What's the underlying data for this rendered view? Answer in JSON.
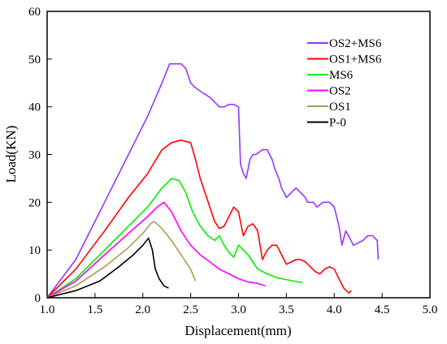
{
  "chart_data": {
    "type": "line",
    "title": "",
    "xlabel": "Displacement(mm)",
    "ylabel": "Load(KN)",
    "xlim": [
      1.0,
      5.0
    ],
    "ylim": [
      0,
      60
    ],
    "xticks": [
      "1.0",
      "1.5",
      "2.0",
      "2.5",
      "3.0",
      "3.5",
      "4.0",
      "4.5",
      "5.0"
    ],
    "yticks": [
      "0",
      "10",
      "20",
      "30",
      "40",
      "50",
      "60"
    ],
    "grid": false,
    "legend_position": "top-right",
    "series": [
      {
        "name": "OS2+MS6",
        "color": "#9933ff",
        "x": [
          1.0,
          1.3,
          1.6,
          1.85,
          2.05,
          2.2,
          2.28,
          2.4,
          2.45,
          2.5,
          2.55,
          2.62,
          2.7,
          2.75,
          2.8,
          2.85,
          2.9,
          2.95,
          3.0,
          3.02,
          3.05,
          3.08,
          3.12,
          3.15,
          3.18,
          3.25,
          3.3,
          3.35,
          3.38,
          3.42,
          3.45,
          3.5,
          3.55,
          3.6,
          3.65,
          3.7,
          3.72,
          3.78,
          3.82,
          3.88,
          3.95,
          4.0,
          4.05,
          4.08,
          4.12,
          4.15,
          4.2,
          4.3,
          4.35,
          4.4,
          4.45,
          4.46
        ],
        "y": [
          0,
          8,
          20,
          30,
          38,
          45,
          49,
          49,
          48,
          45,
          44,
          43,
          42,
          41,
          40,
          40,
          40.5,
          40.5,
          40,
          28,
          26,
          25,
          29,
          30,
          30,
          31,
          31,
          29,
          27,
          25,
          23,
          21,
          22,
          23,
          22,
          21,
          20,
          20,
          19,
          20,
          20,
          19,
          15,
          11,
          14,
          13,
          11,
          12,
          13,
          13,
          12,
          8
        ]
      },
      {
        "name": "OS1+MS6",
        "color": "#ff0000",
        "x": [
          1.0,
          1.3,
          1.6,
          1.85,
          2.05,
          2.2,
          2.3,
          2.4,
          2.5,
          2.55,
          2.6,
          2.65,
          2.7,
          2.75,
          2.8,
          2.85,
          2.9,
          2.95,
          3.0,
          3.05,
          3.1,
          3.15,
          3.2,
          3.25,
          3.3,
          3.35,
          3.4,
          3.45,
          3.5,
          3.55,
          3.6,
          3.65,
          3.7,
          3.75,
          3.8,
          3.85,
          3.9,
          3.95,
          4.0,
          4.05,
          4.1,
          4.15,
          4.18
        ],
        "y": [
          0,
          6,
          14,
          21,
          26,
          31,
          32.5,
          33,
          32.5,
          29,
          25,
          22,
          19,
          16,
          14.5,
          15,
          17,
          19,
          18,
          13,
          15,
          15.5,
          14,
          8,
          10,
          11,
          11,
          9,
          7,
          7.5,
          8,
          8,
          7.5,
          6.5,
          5.5,
          5,
          6,
          6.5,
          6,
          4,
          2,
          1,
          1.5
        ]
      },
      {
        "name": "MS6",
        "color": "#00ee00",
        "x": [
          1.0,
          1.3,
          1.6,
          1.85,
          2.05,
          2.2,
          2.3,
          2.38,
          2.45,
          2.52,
          2.6,
          2.68,
          2.75,
          2.8,
          2.85,
          2.9,
          2.95,
          3.0,
          3.05,
          3.1,
          3.15,
          3.2,
          3.3,
          3.4,
          3.5,
          3.6,
          3.67
        ],
        "y": [
          0,
          4,
          10,
          15,
          19,
          23,
          25,
          24.5,
          22,
          18,
          15,
          13,
          12,
          13,
          11,
          9.5,
          8.5,
          11,
          10,
          9,
          7.5,
          6,
          5,
          4.2,
          3.8,
          3.4,
          3.2
        ]
      },
      {
        "name": "OS2",
        "color": "#ff00ff",
        "x": [
          1.0,
          1.3,
          1.6,
          1.85,
          2.05,
          2.15,
          2.22,
          2.3,
          2.4,
          2.5,
          2.6,
          2.7,
          2.8,
          2.9,
          3.0,
          3.1,
          3.2,
          3.28
        ],
        "y": [
          0,
          3.5,
          9,
          13.5,
          17,
          19,
          20,
          18,
          14,
          11,
          9,
          7.5,
          6,
          5,
          4,
          3.3,
          3,
          2.5
        ]
      },
      {
        "name": "OS1",
        "color": "#b09a50",
        "x": [
          1.0,
          1.3,
          1.6,
          1.85,
          2.0,
          2.08,
          2.12,
          2.2,
          2.3,
          2.4,
          2.5,
          2.55
        ],
        "y": [
          0,
          2.5,
          6.5,
          10.5,
          13.5,
          15.5,
          16,
          14.5,
          12,
          9,
          6,
          3.5
        ]
      },
      {
        "name": "P-0",
        "color": "#000000",
        "x": [
          1.0,
          1.3,
          1.55,
          1.75,
          1.9,
          2.0,
          2.06,
          2.1,
          2.13,
          2.17,
          2.22,
          2.27
        ],
        "y": [
          0,
          1.5,
          3.5,
          6.5,
          9,
          11,
          12.5,
          10,
          6,
          4,
          2.5,
          2
        ]
      }
    ]
  }
}
